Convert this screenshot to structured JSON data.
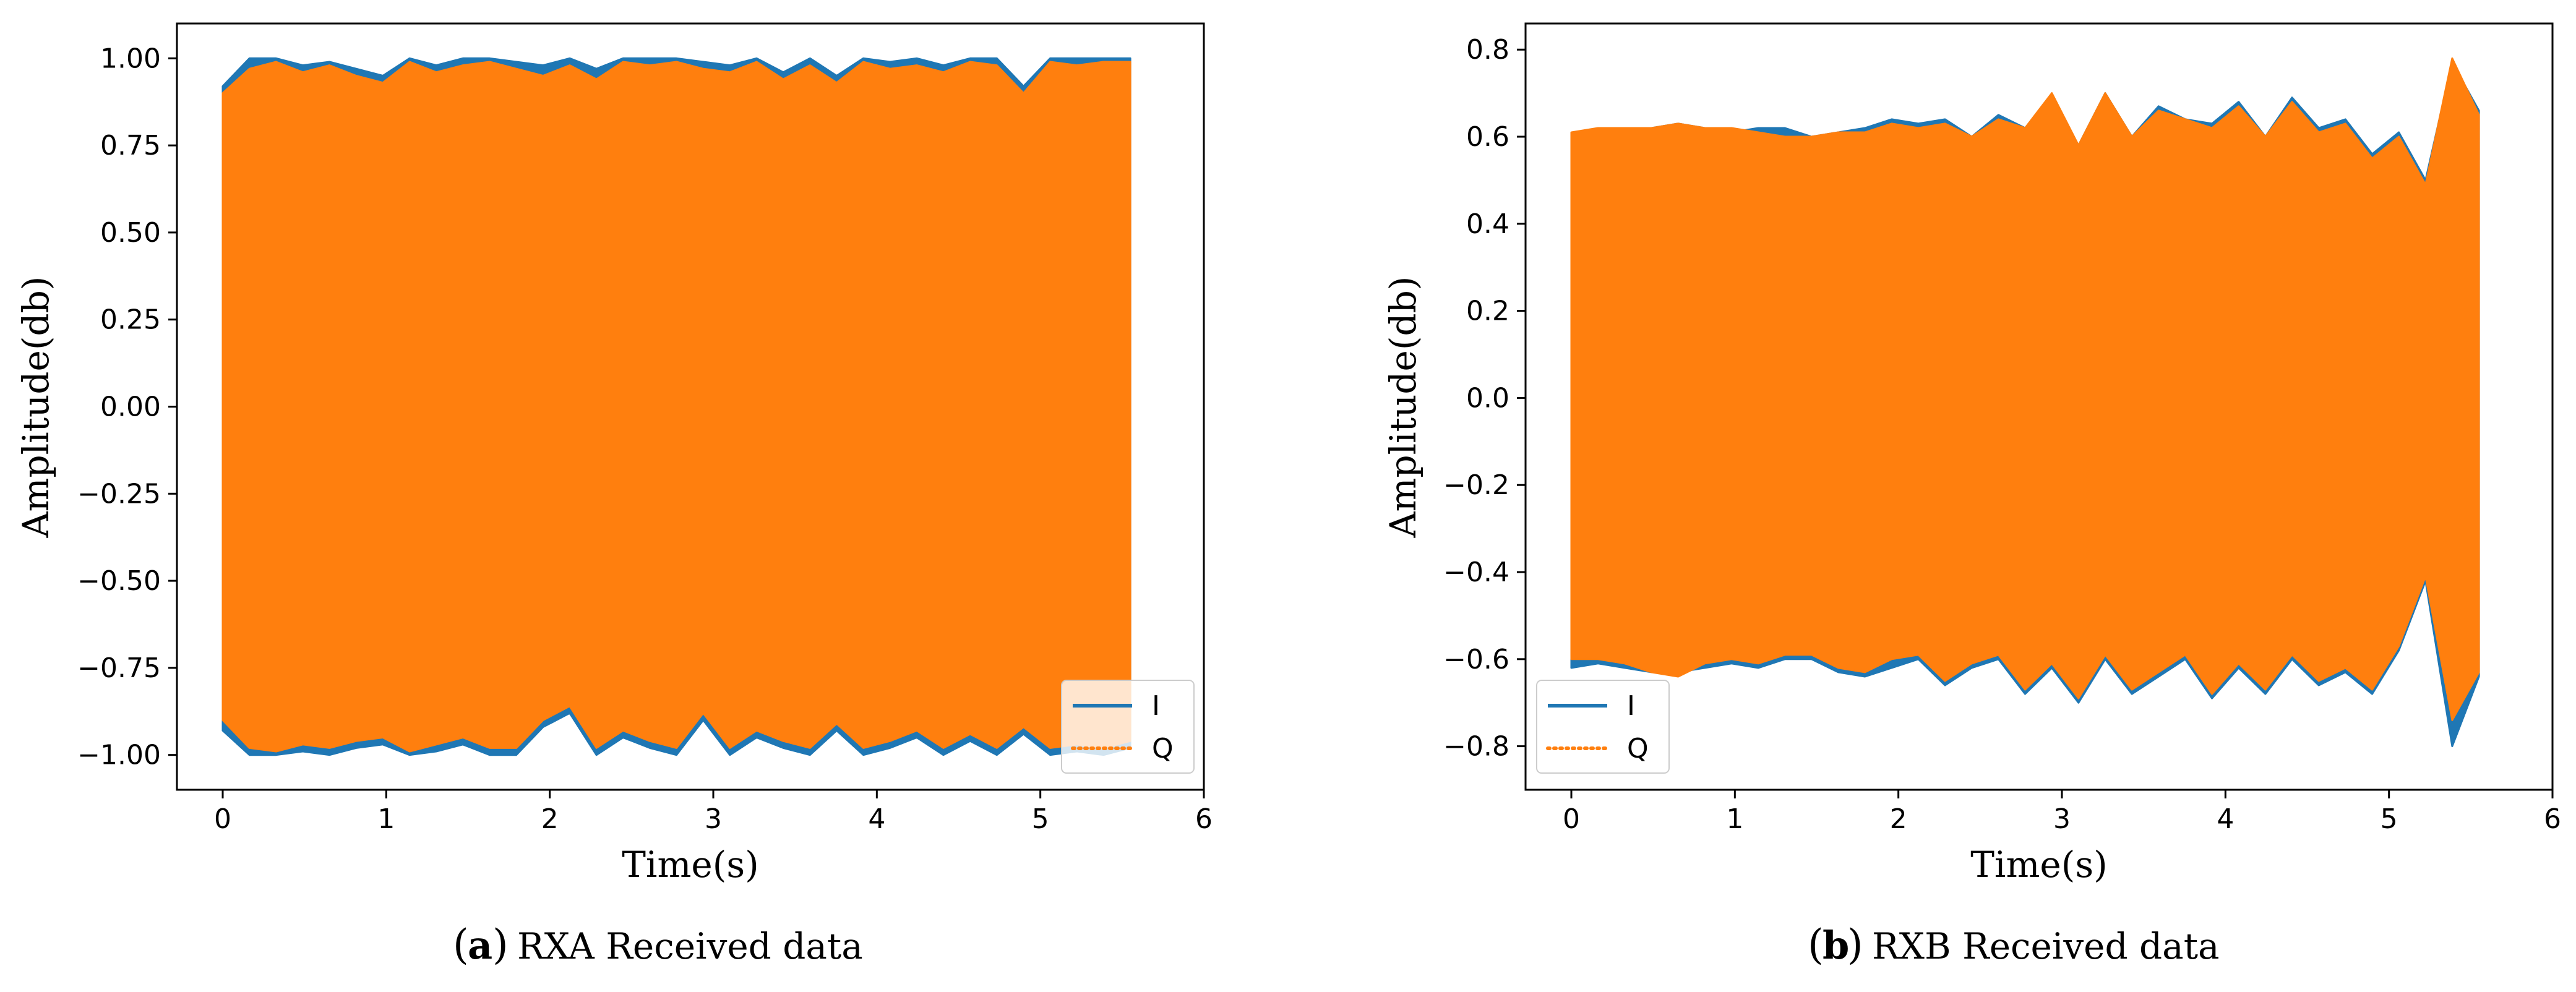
{
  "chart_data": [
    {
      "type": "line",
      "panel": "a",
      "caption_letter": "a",
      "caption_text": "RXA Received data",
      "xlabel": "Time(s)",
      "ylabel": "Amplitude(db)",
      "xlim": [
        -0.28,
        6.0
      ],
      "ylim": [
        -1.1,
        1.1
      ],
      "xticks": [
        0,
        1,
        2,
        3,
        4,
        5,
        6
      ],
      "xtick_labels": [
        "0",
        "1",
        "2",
        "3",
        "4",
        "5",
        "6"
      ],
      "yticks": [
        -1.0,
        -0.75,
        -0.5,
        -0.25,
        0.0,
        0.25,
        0.5,
        0.75,
        1.0
      ],
      "ytick_labels": [
        "−1.00",
        "−0.75",
        "−0.50",
        "−0.25",
        "0.00",
        "0.25",
        "0.50",
        "0.75",
        "1.00"
      ],
      "legend_position": "bottom-right",
      "duration_s": 5.55,
      "series": [
        {
          "name": "I",
          "style": "solid",
          "color": "#1f77b4",
          "envelope_upper": [
            0.92,
            1.0,
            1.0,
            0.98,
            0.99,
            0.97,
            0.95,
            1.0,
            0.98,
            1.0,
            1.0,
            0.99,
            0.98,
            1.0,
            0.97,
            1.0,
            1.0,
            1.0,
            0.99,
            0.98,
            1.0,
            0.96,
            1.0,
            0.95,
            1.0,
            0.99,
            1.0,
            0.98,
            1.0,
            1.0,
            0.92,
            1.0,
            1.0,
            1.0,
            1.0
          ],
          "envelope_lower": [
            -0.93,
            -1.0,
            -1.0,
            -0.99,
            -1.0,
            -0.98,
            -0.97,
            -1.0,
            -0.99,
            -0.97,
            -1.0,
            -1.0,
            -0.92,
            -0.88,
            -1.0,
            -0.95,
            -0.98,
            -1.0,
            -0.9,
            -1.0,
            -0.95,
            -0.98,
            -1.0,
            -0.93,
            -1.0,
            -0.98,
            -0.95,
            -1.0,
            -0.96,
            -1.0,
            -0.94,
            -1.0,
            -0.99,
            -1.0,
            -0.98
          ]
        },
        {
          "name": "Q",
          "style": "dotted",
          "color": "#ff7f0e",
          "envelope_upper": [
            0.9,
            0.97,
            0.99,
            0.96,
            0.98,
            0.95,
            0.93,
            0.99,
            0.96,
            0.98,
            0.99,
            0.97,
            0.95,
            0.98,
            0.94,
            0.99,
            0.98,
            0.99,
            0.97,
            0.96,
            0.99,
            0.94,
            0.98,
            0.93,
            0.99,
            0.97,
            0.98,
            0.96,
            0.99,
            0.98,
            0.9,
            0.99,
            0.98,
            0.99,
            0.99
          ],
          "envelope_lower": [
            -0.9,
            -0.98,
            -0.99,
            -0.97,
            -0.98,
            -0.96,
            -0.95,
            -0.99,
            -0.97,
            -0.95,
            -0.98,
            -0.98,
            -0.9,
            -0.86,
            -0.98,
            -0.93,
            -0.96,
            -0.98,
            -0.88,
            -0.98,
            -0.93,
            -0.96,
            -0.98,
            -0.91,
            -0.98,
            -0.96,
            -0.93,
            -0.98,
            -0.94,
            -0.98,
            -0.92,
            -0.98,
            -0.97,
            -0.98,
            -0.96
          ]
        }
      ]
    },
    {
      "type": "line",
      "panel": "b",
      "caption_letter": "b",
      "caption_text": "RXB Received data",
      "xlabel": "Time(s)",
      "ylabel": "Amplitude(db)",
      "xlim": [
        -0.28,
        6.0
      ],
      "ylim": [
        -0.9,
        0.86
      ],
      "xticks": [
        0,
        1,
        2,
        3,
        4,
        5,
        6
      ],
      "xtick_labels": [
        "0",
        "1",
        "2",
        "3",
        "4",
        "5",
        "6"
      ],
      "yticks": [
        -0.8,
        -0.6,
        -0.4,
        -0.2,
        0.0,
        0.2,
        0.4,
        0.6,
        0.8
      ],
      "ytick_labels": [
        "−0.8",
        "−0.6",
        "−0.4",
        "−0.2",
        "0.0",
        "0.2",
        "0.4",
        "0.6",
        "0.8"
      ],
      "legend_position": "bottom-left",
      "duration_s": 5.55,
      "series": [
        {
          "name": "I",
          "style": "solid",
          "color": "#1f77b4",
          "envelope_upper": [
            0.6,
            0.61,
            0.61,
            0.62,
            0.63,
            0.62,
            0.61,
            0.62,
            0.62,
            0.6,
            0.61,
            0.62,
            0.64,
            0.63,
            0.64,
            0.6,
            0.65,
            0.62,
            0.69,
            0.58,
            0.7,
            0.6,
            0.67,
            0.64,
            0.63,
            0.68,
            0.6,
            0.69,
            0.62,
            0.64,
            0.56,
            0.61,
            0.5,
            0.77,
            0.66
          ],
          "envelope_lower": [
            -0.62,
            -0.61,
            -0.62,
            -0.63,
            -0.63,
            -0.62,
            -0.61,
            -0.62,
            -0.6,
            -0.6,
            -0.63,
            -0.64,
            -0.62,
            -0.6,
            -0.66,
            -0.62,
            -0.6,
            -0.68,
            -0.62,
            -0.7,
            -0.6,
            -0.68,
            -0.64,
            -0.6,
            -0.69,
            -0.62,
            -0.68,
            -0.6,
            -0.66,
            -0.63,
            -0.68,
            -0.58,
            -0.42,
            -0.8,
            -0.64
          ]
        },
        {
          "name": "Q",
          "style": "dotted",
          "color": "#ff7f0e",
          "envelope_upper": [
            0.61,
            0.62,
            0.62,
            0.62,
            0.63,
            0.62,
            0.62,
            0.61,
            0.6,
            0.6,
            0.61,
            0.61,
            0.63,
            0.62,
            0.63,
            0.6,
            0.64,
            0.62,
            0.7,
            0.58,
            0.7,
            0.6,
            0.66,
            0.64,
            0.62,
            0.67,
            0.6,
            0.68,
            0.61,
            0.63,
            0.55,
            0.6,
            0.49,
            0.78,
            0.65
          ],
          "envelope_lower": [
            -0.6,
            -0.6,
            -0.61,
            -0.63,
            -0.64,
            -0.61,
            -0.6,
            -0.61,
            -0.59,
            -0.59,
            -0.62,
            -0.63,
            -0.6,
            -0.59,
            -0.65,
            -0.61,
            -0.59,
            -0.67,
            -0.61,
            -0.69,
            -0.59,
            -0.67,
            -0.63,
            -0.59,
            -0.68,
            -0.61,
            -0.67,
            -0.59,
            -0.65,
            -0.62,
            -0.67,
            -0.57,
            -0.41,
            -0.74,
            -0.63
          ]
        }
      ]
    }
  ]
}
